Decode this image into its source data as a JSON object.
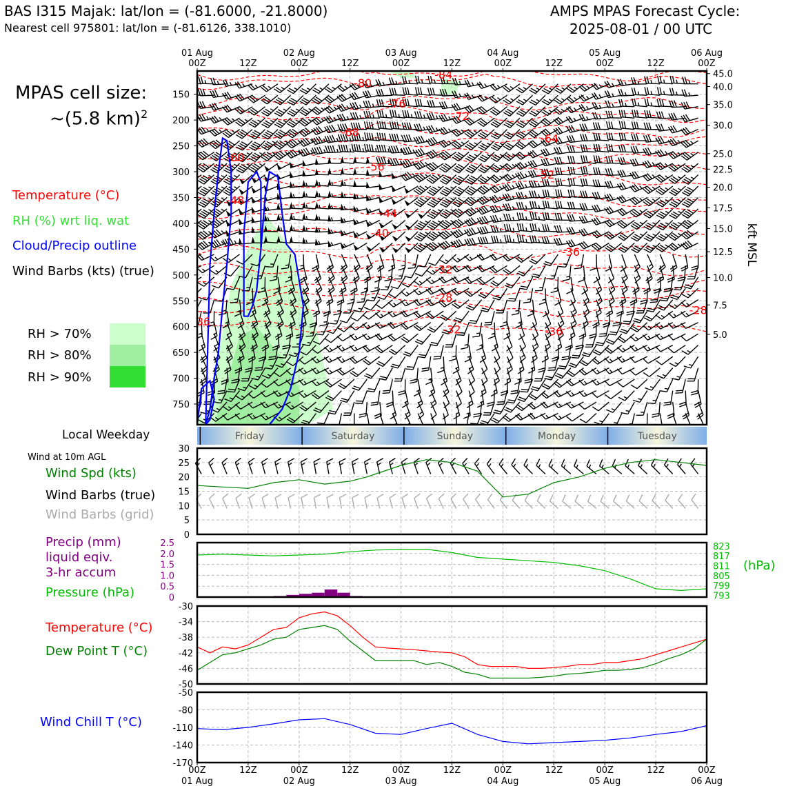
{
  "header": {
    "station_title": "BAS I315 Majak: lat/lon = (-81.6000, -21.8000)",
    "nearest_cell": "Nearest cell 975801: lat/lon = (-81.6126, 338.1010)",
    "forecast_title_1": "AMPS MPAS Forecast Cycle:",
    "forecast_title_2": "2025-08-01 / 00 UTC"
  },
  "sidebar": {
    "cell_size_1": "MPAS cell size:",
    "cell_size_2": "~(5.8 km)",
    "cell_size_exp": "2",
    "legend_temperature": "Temperature (°C)",
    "legend_rh": "RH (%) wrt liq. wat",
    "legend_cloud": "Cloud/Precip outline",
    "legend_wind": "Wind Barbs (kts) (true)",
    "rh_levels": [
      "RH > 70%",
      "RH > 80%",
      "RH > 90%"
    ],
    "local_weekday": "Local Weekday",
    "wind_10m": "Wind at 10m AGL",
    "wind_spd": "Wind Spd (kts)",
    "wind_barbs_true": "Wind Barbs (true)",
    "wind_barbs_grid": "Wind Barbs (grid)",
    "precip_1": "Precip (mm)",
    "precip_2": "liquid eqiv.",
    "precip_3": "3-hr accum",
    "pressure": "Pressure (hPa)",
    "temp": "Temperature (°C)",
    "dewpoint": "Dew Point T (°C)",
    "windchill": "Wind Chill T (°C)"
  },
  "colors": {
    "temperature": "#ff0000",
    "rh": "#33dd33",
    "cloud": "#0000ff",
    "dewpoint": "#008000",
    "pressure": "#00bb00",
    "precip": "#800080",
    "windchill": "#0000ff",
    "rh70": "#ccffcc",
    "rh80": "#a0eea0",
    "rh90": "#33dd33",
    "barb_grid": "#aaaaaa"
  },
  "time_axis": {
    "top_dates": [
      "01 Aug",
      "02 Aug",
      "03 Aug",
      "04 Aug",
      "05 Aug",
      "06 Aug"
    ],
    "top_times": [
      "00Z",
      "12Z",
      "00Z",
      "12Z",
      "00Z",
      "12Z",
      "00Z",
      "12Z",
      "00Z",
      "12Z",
      "00Z"
    ],
    "bottom_times": [
      "00Z",
      "12Z",
      "00Z",
      "12Z",
      "00Z",
      "12Z",
      "00Z",
      "12Z",
      "00Z",
      "12Z",
      "00Z"
    ],
    "bottom_dates": [
      "01 Aug",
      "02 Aug",
      "03 Aug",
      "04 Aug",
      "05 Aug",
      "06 Aug"
    ],
    "hours_total": 120
  },
  "weekdays": [
    "Friday",
    "Saturday",
    "Sunday",
    "Monday",
    "Tuesday"
  ],
  "chart_data": [
    {
      "type": "heatmap",
      "panel": "time-height cross section",
      "pressure_ticks": [
        150,
        200,
        250,
        300,
        350,
        400,
        450,
        500,
        550,
        600,
        650,
        700,
        750
      ],
      "ylim_hpa": [
        105,
        790
      ],
      "kft_ticks": [
        "45.0",
        "40.0",
        "35.0",
        "30.0",
        "25.0",
        "22.5",
        "20.0",
        "17.5",
        "15.0",
        "12.5",
        "10.0",
        "7.5",
        "5.0"
      ],
      "kft_hpa": [
        110,
        135,
        170,
        210,
        265,
        295,
        330,
        370,
        410,
        455,
        505,
        558,
        615
      ],
      "kft_label": "kft MSL",
      "temperature_labels": [
        {
          "text": "-84",
          "t": 58,
          "p": 112
        },
        {
          "text": "-80",
          "t": 39,
          "p": 128
        },
        {
          "text": "-76",
          "t": 47,
          "p": 168
        },
        {
          "text": "-72",
          "t": 62,
          "p": 192
        },
        {
          "text": "-68",
          "t": 36,
          "p": 223
        },
        {
          "text": "-64",
          "t": 83,
          "p": 235
        },
        {
          "text": "-60",
          "t": 9,
          "p": 272
        },
        {
          "text": "-56",
          "t": 42,
          "p": 290
        },
        {
          "text": "-52",
          "t": 82,
          "p": 305
        },
        {
          "text": "-48",
          "t": 9,
          "p": 355
        },
        {
          "text": "-44",
          "t": 45,
          "p": 380
        },
        {
          "text": "-40",
          "t": 43,
          "p": 418
        },
        {
          "text": "-36",
          "t": 88,
          "p": 455
        },
        {
          "text": "-32",
          "t": 58,
          "p": 489
        },
        {
          "text": "-28",
          "t": 58,
          "p": 543
        },
        {
          "text": "-28",
          "t": 118,
          "p": 568
        },
        {
          "text": "-36",
          "t": 1,
          "p": 590
        },
        {
          "text": "-32",
          "t": 60,
          "p": 605
        },
        {
          "text": "-36",
          "t": 84,
          "p": 609
        }
      ],
      "isotherm_hpa": [
        112,
        128,
        168,
        192,
        223,
        245,
        272,
        290,
        318,
        355,
        380,
        418,
        455,
        489,
        520,
        543,
        568,
        600
      ],
      "cloud_outlines": [
        {
          "t": [
            2,
            3,
            4,
            5,
            6,
            7,
            8,
            8,
            7,
            6,
            5,
            4,
            3,
            2
          ],
          "p": [
            790,
            480,
            380,
            300,
            235,
            240,
            300,
            380,
            480,
            560,
            650,
            700,
            760,
            790
          ]
        },
        {
          "t": [
            11,
            11,
            12,
            14,
            15,
            15,
            14,
            13,
            12,
            11
          ],
          "p": [
            580,
            420,
            320,
            300,
            320,
            450,
            530,
            560,
            580,
            580
          ]
        },
        {
          "t": [
            15,
            16,
            17,
            19,
            20,
            21,
            23,
            25,
            24,
            22,
            20,
            17,
            15
          ],
          "p": [
            450,
            350,
            300,
            310,
            380,
            440,
            460,
            560,
            650,
            720,
            760,
            790,
            790
          ]
        },
        {
          "t": [
            0,
            1,
            3,
            4,
            3,
            2,
            1,
            0
          ],
          "p": [
            790,
            720,
            705,
            740,
            780,
            790,
            790,
            790
          ]
        }
      ],
      "rh_regions": [
        {
          "level": 70,
          "t": [
            2,
            8,
            16,
            22,
            28,
            32,
            26,
            18,
            10,
            4,
            0,
            0
          ],
          "p": [
            790,
            520,
            380,
            450,
            600,
            760,
            790,
            790,
            790,
            790,
            790,
            760
          ]
        },
        {
          "level": 80,
          "t": [
            4,
            10,
            14,
            20,
            24,
            24,
            18,
            10,
            4
          ],
          "p": [
            790,
            620,
            600,
            660,
            720,
            790,
            790,
            790,
            790
          ]
        },
        {
          "level": 70,
          "t": [
            45,
            50,
            52,
            48
          ],
          "p": [
            105,
            105,
            118,
            118
          ]
        },
        {
          "level": 70,
          "t": [
            58,
            62,
            61,
            57
          ],
          "p": [
            120,
            125,
            150,
            150
          ]
        }
      ]
    },
    {
      "type": "line",
      "panel": "wind at 10m",
      "ylabel": "Wind Spd (kts)",
      "ylim": [
        0,
        30
      ],
      "yticks": [
        0,
        5,
        10,
        15,
        20,
        25,
        30
      ],
      "x": [
        0,
        6,
        12,
        18,
        24,
        30,
        36,
        40,
        42,
        48,
        54,
        60,
        66,
        72,
        78,
        84,
        90,
        96,
        102,
        108,
        114,
        120
      ],
      "series": [
        {
          "name": "Wind Spd (kts)",
          "values": [
            17,
            16.5,
            16,
            18,
            19,
            17.5,
            18.5,
            20,
            21,
            24,
            26,
            25,
            22,
            13,
            14,
            18,
            20,
            23,
            25,
            26,
            25,
            24
          ]
        }
      ],
      "barbs_true_value": 21,
      "barbs_grid_value": 9
    },
    {
      "type": "bar",
      "panel": "precip",
      "ylabel": "Precip (mm)",
      "ylim": [
        0,
        2.5
      ],
      "yticks": [
        0,
        0.5,
        1.0,
        1.5,
        2.0,
        2.5
      ],
      "ytick_labels": [
        "0",
        "0.5",
        "1.0",
        "1.5",
        "2.0",
        "2.5"
      ],
      "x": [
        18,
        21,
        24,
        27,
        30,
        33,
        36
      ],
      "values": [
        0.05,
        0.1,
        0.15,
        0.2,
        0.35,
        0.2,
        0.05
      ]
    },
    {
      "type": "line",
      "panel": "pressure",
      "ylabel": "Pressure (hPa)",
      "unit_label": "(hPa)",
      "ylim": [
        792,
        825
      ],
      "ticks": [
        823,
        817,
        811,
        805,
        799,
        793
      ],
      "x": [
        0,
        6,
        12,
        18,
        24,
        30,
        36,
        42,
        48,
        54,
        60,
        66,
        72,
        78,
        84,
        90,
        96,
        102,
        108,
        114,
        120
      ],
      "values": [
        817.5,
        818,
        817.5,
        817,
        817.5,
        818,
        819.5,
        820.5,
        821,
        821,
        819,
        816,
        815,
        814,
        813,
        811,
        808,
        803,
        797,
        796,
        797
      ]
    },
    {
      "type": "line",
      "panel": "temperature and dewpoint",
      "ylim": [
        -50,
        -30
      ],
      "yticks": [
        -30,
        -34,
        -38,
        -42,
        -46,
        -50
      ],
      "x": [
        0,
        3,
        6,
        9,
        12,
        15,
        18,
        21,
        24,
        27,
        30,
        33,
        36,
        39,
        42,
        45,
        48,
        51,
        54,
        57,
        60,
        63,
        66,
        69,
        72,
        75,
        78,
        81,
        84,
        87,
        90,
        93,
        96,
        99,
        102,
        105,
        108,
        111,
        114,
        117,
        120
      ],
      "series": [
        {
          "name": "Temperature (°C)",
          "values": [
            -40.5,
            -42,
            -40.5,
            -41,
            -40,
            -38,
            -36,
            -35.5,
            -33,
            -32,
            -31.5,
            -32.5,
            -35,
            -38,
            -40.5,
            -40.8,
            -41,
            -41.2,
            -41.5,
            -41.8,
            -42,
            -43,
            -45,
            -45.5,
            -45.5,
            -45.5,
            -46,
            -46,
            -45.8,
            -45.5,
            -45,
            -45,
            -44.5,
            -44.5,
            -44,
            -43.5,
            -42.5,
            -41.5,
            -40.5,
            -39.5,
            -38.5
          ]
        },
        {
          "name": "Dew Point T (°C)",
          "values": [
            -46.5,
            -44.5,
            -42.5,
            -42,
            -41,
            -40,
            -38.5,
            -38,
            -36,
            -35.5,
            -35,
            -36,
            -39,
            -41.5,
            -44,
            -44,
            -44,
            -44,
            -45,
            -44.5,
            -45.5,
            -47,
            -47.5,
            -48.5,
            -48.5,
            -48.5,
            -48.5,
            -48.3,
            -48,
            -47.5,
            -47.3,
            -47,
            -46.5,
            -46.5,
            -46.3,
            -45.8,
            -44.8,
            -43.5,
            -42.5,
            -41,
            -38.5
          ]
        }
      ]
    },
    {
      "type": "line",
      "panel": "wind chill",
      "ylim": [
        -170,
        -50
      ],
      "yticks": [
        -50,
        -80,
        -110,
        -140,
        -170
      ],
      "x": [
        0,
        6,
        12,
        18,
        24,
        30,
        36,
        42,
        48,
        54,
        60,
        66,
        72,
        78,
        84,
        90,
        96,
        102,
        108,
        114,
        120
      ],
      "series": [
        {
          "name": "Wind Chill T (°C)",
          "values": [
            -112,
            -114,
            -110,
            -104,
            -97,
            -95,
            -105,
            -120,
            -122,
            -112,
            -103,
            -122,
            -134,
            -138,
            -136,
            -134,
            -132,
            -128,
            -122,
            -117,
            -107
          ]
        }
      ]
    }
  ]
}
